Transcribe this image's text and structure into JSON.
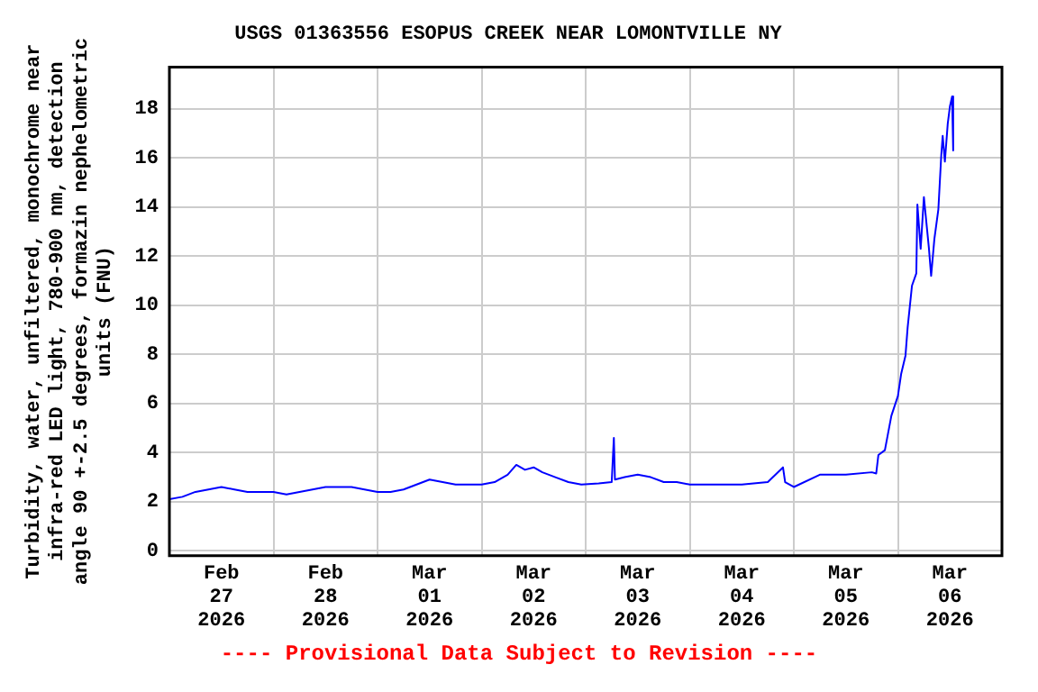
{
  "chart_data": {
    "type": "line",
    "title": "USGS 01363556 ESOPUS CREEK NEAR LOMONTVILLE NY",
    "ylabel": "Turbidity, water, unfiltered, monochrome near infra-red LED light, 780-900 nm, detection angle 90 +-2.5 degrees, formazin nephelometric units (FNU)",
    "annotations": [
      "---- Provisional Data Subject to Revision ----"
    ],
    "x": [
      "2026-02-27T00:00",
      "2026-02-27T03:00",
      "2026-02-27T06:00",
      "2026-02-27T09:00",
      "2026-02-27T12:00",
      "2026-02-27T15:00",
      "2026-02-27T18:00",
      "2026-02-27T21:00",
      "2026-02-28T00:00",
      "2026-02-28T03:00",
      "2026-02-28T06:00",
      "2026-02-28T09:00",
      "2026-02-28T12:00",
      "2026-02-28T15:00",
      "2026-02-28T18:00",
      "2026-02-28T21:00",
      "2026-03-01T00:00",
      "2026-03-01T03:00",
      "2026-03-01T06:00",
      "2026-03-01T09:00",
      "2026-03-01T12:00",
      "2026-03-01T15:00",
      "2026-03-01T18:00",
      "2026-03-01T21:00",
      "2026-03-02T00:00",
      "2026-03-02T03:00",
      "2026-03-02T06:00",
      "2026-03-02T08:00",
      "2026-03-02T10:00",
      "2026-03-02T12:00",
      "2026-03-02T14:00",
      "2026-03-02T17:00",
      "2026-03-02T20:00",
      "2026-03-02T23:00",
      "2026-03-03T03:00",
      "2026-03-03T06:00",
      "2026-03-03T06:30",
      "2026-03-03T06:45",
      "2026-03-03T09:00",
      "2026-03-03T12:00",
      "2026-03-03T15:00",
      "2026-03-03T18:00",
      "2026-03-03T21:00",
      "2026-03-04T00:00",
      "2026-03-04T06:00",
      "2026-03-04T12:00",
      "2026-03-04T18:00",
      "2026-03-04T21:30",
      "2026-03-04T22:00",
      "2026-03-05T00:00",
      "2026-03-05T06:00",
      "2026-03-05T12:00",
      "2026-03-05T18:00",
      "2026-03-05T19:00",
      "2026-03-05T19:30",
      "2026-03-05T21:00",
      "2026-03-05T22:30",
      "2026-03-06T00:00",
      "2026-03-06T00:45",
      "2026-03-06T01:45",
      "2026-03-06T02:15",
      "2026-03-06T03:15",
      "2026-03-06T04:15",
      "2026-03-06T04:30",
      "2026-03-06T05:15",
      "2026-03-06T06:00",
      "2026-03-06T07:10",
      "2026-03-06T07:40",
      "2026-03-06T08:25",
      "2026-03-06T09:20",
      "2026-03-06T10:00",
      "2026-03-06T10:20",
      "2026-03-06T10:50",
      "2026-03-06T11:30",
      "2026-03-06T12:00",
      "2026-03-06T12:30",
      "2026-03-06T12:45"
    ],
    "series": [
      {
        "color": "#0000ff",
        "values": [
          2.1,
          2.2,
          2.4,
          2.5,
          2.6,
          2.5,
          2.4,
          2.4,
          2.4,
          2.3,
          2.4,
          2.5,
          2.6,
          2.6,
          2.6,
          2.5,
          2.4,
          2.4,
          2.5,
          2.7,
          2.9,
          2.8,
          2.7,
          2.7,
          2.7,
          2.8,
          3.1,
          3.5,
          3.3,
          3.4,
          3.2,
          3.0,
          2.8,
          2.7,
          2.75,
          2.8,
          4.6,
          2.9,
          3.0,
          3.1,
          3.0,
          2.8,
          2.8,
          2.7,
          2.7,
          2.7,
          2.8,
          3.4,
          2.8,
          2.6,
          3.1,
          3.1,
          3.2,
          3.15,
          3.9,
          4.1,
          5.5,
          6.3,
          7.2,
          7.95,
          9.1,
          10.8,
          11.3,
          14.1,
          12.3,
          14.4,
          12.3,
          11.2,
          12.7,
          13.9,
          16.1,
          16.9,
          15.85,
          17.4,
          18.1,
          18.5,
          16.3
        ]
      }
    ],
    "xlim": [
      "2026-02-27T00:00",
      "2026-03-07T00:00"
    ],
    "xticks": [
      {
        "value": "2026-02-27T12:00",
        "label": "Feb 27 2026"
      },
      {
        "value": "2026-02-28T00:00",
        "label": null
      },
      {
        "value": "2026-02-28T12:00",
        "label": "Feb 28 2026"
      },
      {
        "value": "2026-03-01T00:00",
        "label": null
      },
      {
        "value": "2026-03-01T12:00",
        "label": "Mar 01 2026"
      },
      {
        "value": "2026-03-02T00:00",
        "label": null
      },
      {
        "value": "2026-03-02T12:00",
        "label": "Mar 02 2026"
      },
      {
        "value": "2026-03-03T00:00",
        "label": null
      },
      {
        "value": "2026-03-03T12:00",
        "label": "Mar 03 2026"
      },
      {
        "value": "2026-03-04T00:00",
        "label": null
      },
      {
        "value": "2026-03-04T12:00",
        "label": "Mar 04 2026"
      },
      {
        "value": "2026-03-05T00:00",
        "label": null
      },
      {
        "value": "2026-03-05T12:00",
        "label": "Mar 05 2026"
      },
      {
        "value": "2026-03-06T00:00",
        "label": null
      },
      {
        "value": "2026-03-06T12:00",
        "label": "Mar 06 2026"
      }
    ],
    "ylim": [
      -0.2,
      19.7
    ],
    "yticks": [
      0,
      2,
      4,
      6,
      8,
      10,
      12,
      14,
      16,
      18
    ],
    "grid": true,
    "legend": false
  }
}
